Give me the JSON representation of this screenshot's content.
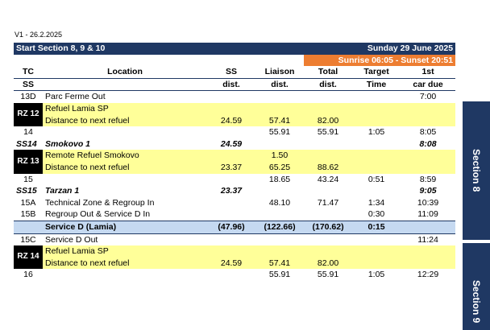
{
  "version": "V1 - 26.2.2025",
  "title_left": "Start Section 8, 9 & 10",
  "title_right": "Sunday 29 June 2025",
  "sunrise": "Sunrise 06:05 - Sunset 20:51",
  "headers": {
    "tc": "TC",
    "ss": "SS",
    "location": "Location",
    "ss_line1": "SS",
    "ss_line2": "dist.",
    "liaison_line1": "Liaison",
    "liaison_line2": "dist.",
    "total_line1": "Total",
    "total_line2": "dist.",
    "target_line1": "Target",
    "target_line2": "Time",
    "car_line1": "1st",
    "car_line2": "car due"
  },
  "rows": {
    "r13d": {
      "tc": "13D",
      "loc": "Parc Ferme Out",
      "car": "7:00"
    },
    "rz12": {
      "rz": "RZ 12",
      "loc1": "Refuel Lamia SP",
      "loc2": "Distance to next refuel",
      "ss": "24.59",
      "liaison": "57.41",
      "total": "82.00"
    },
    "r14": {
      "tc": "14",
      "liaison": "55.91",
      "total": "55.91",
      "target": "1:05",
      "car": "8:05"
    },
    "ss14": {
      "ss": "SS14",
      "loc": "Smokovo 1",
      "dist": "24.59",
      "car": "8:08"
    },
    "rz13": {
      "rz": "RZ 13",
      "loc1": "Remote Refuel Smokovo",
      "loc2": "Distance to next refuel",
      "liaison1": "1.50",
      "ss": "23.37",
      "liaison": "65.25",
      "total": "88.62"
    },
    "r15": {
      "tc": "15",
      "liaison": "18.65",
      "total": "43.24",
      "target": "0:51",
      "car": "8:59"
    },
    "ss15": {
      "ss": "SS15",
      "loc": "Tarzan 1",
      "dist": "23.37",
      "car": "9:05"
    },
    "r15a": {
      "tc": "15A",
      "loc": "Technical Zone & Regroup In",
      "liaison": "48.10",
      "total": "71.47",
      "target": "1:34",
      "car": "10:39"
    },
    "r15b": {
      "tc": "15B",
      "loc": "Regroup Out & Service D In",
      "target": "0:30",
      "car": "11:09"
    },
    "svc": {
      "loc": "Service D (Lamia)",
      "ss": "(47.96)",
      "liaison": "(122.66)",
      "total": "(170.62)",
      "target": "0:15"
    },
    "r15c": {
      "tc": "15C",
      "loc": "Service D Out",
      "car": "11:24"
    },
    "rz14": {
      "rz": "RZ 14",
      "loc1": "Refuel Lamia SP",
      "loc2": "Distance to next refuel",
      "ss": "24.59",
      "liaison": "57.41",
      "total": "82.00"
    },
    "r16": {
      "tc": "16",
      "liaison": "55.91",
      "total": "55.91",
      "target": "1:05",
      "car": "12:29"
    }
  },
  "side_labels": {
    "s8": "Section 8",
    "s9": "Section 9"
  },
  "colors": {
    "navy": "#1f3863",
    "orange": "#ed7d31",
    "yellow": "#ffff99",
    "service": "#c5d9f1"
  }
}
